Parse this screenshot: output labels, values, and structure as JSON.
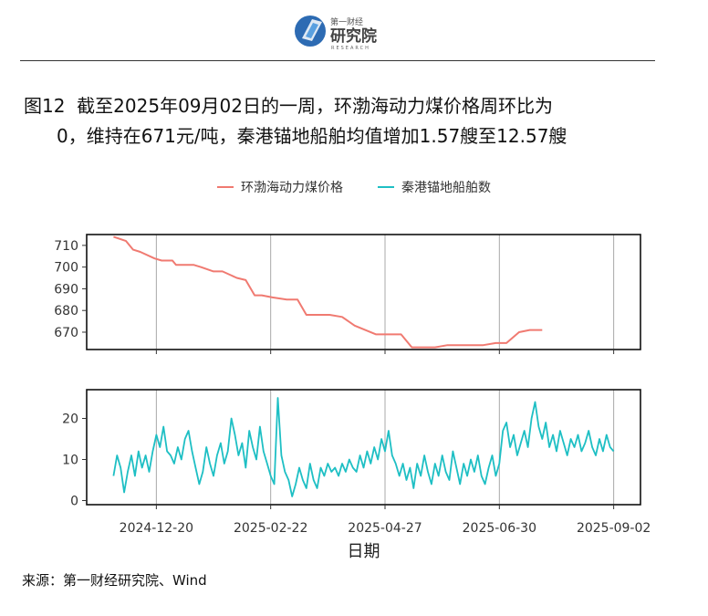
{
  "logo": {
    "brand_cn": "第一财经",
    "name_cn": "研究院",
    "name_en": "RESEARCH"
  },
  "title": {
    "prefix": "图12",
    "line1": "截至2025年09月02日的一周，环渤海动力煤价格周环比为",
    "line2": "0，维持在671元/吨，秦港锚地船舶均值增加1.57艘至12.57艘"
  },
  "legend": [
    "环渤海动力煤价格",
    "秦港锚地船舶数"
  ],
  "source": "来源：第一财经研究院、Wind",
  "colors": {
    "price": "#f07a71",
    "ships": "#1ebfc4",
    "grid": "#a8a8a8",
    "frame": "#111111"
  },
  "chart_data": [
    {
      "type": "line",
      "series": [
        {
          "name": "环渤海动力煤价格",
          "color": "#f07a71"
        }
      ],
      "x_type": "date",
      "xlim": [
        "2024-11-11",
        "2025-09-17"
      ],
      "x_ticks": [
        "2024-12-20",
        "2025-02-22",
        "2025-04-27",
        "2025-06-30",
        "2025-09-02"
      ],
      "ylim": [
        662,
        715
      ],
      "y_ticks": [
        670,
        680,
        690,
        700,
        710
      ],
      "points": [
        [
          "2024-11-26",
          714
        ],
        [
          "2024-12-03",
          712
        ],
        [
          "2024-12-07",
          708
        ],
        [
          "2024-12-11",
          707
        ],
        [
          "2024-12-19",
          704
        ],
        [
          "2024-12-23",
          703
        ],
        [
          "2024-12-29",
          703
        ],
        [
          "2024-12-31",
          701
        ],
        [
          "2025-01-10",
          701
        ],
        [
          "2025-01-14",
          700
        ],
        [
          "2025-01-21",
          698
        ],
        [
          "2025-01-26",
          698
        ],
        [
          "2025-02-03",
          695
        ],
        [
          "2025-02-08",
          694
        ],
        [
          "2025-02-13",
          687
        ],
        [
          "2025-02-17",
          687
        ],
        [
          "2025-02-23",
          686
        ],
        [
          "2025-03-03",
          685
        ],
        [
          "2025-03-09",
          685
        ],
        [
          "2025-03-14",
          678
        ],
        [
          "2025-03-27",
          678
        ],
        [
          "2025-04-03",
          677
        ],
        [
          "2025-04-10",
          673
        ],
        [
          "2025-04-22",
          669
        ],
        [
          "2025-05-06",
          669
        ],
        [
          "2025-05-12",
          663
        ],
        [
          "2025-05-25",
          663
        ],
        [
          "2025-06-01",
          664
        ],
        [
          "2025-06-21",
          664
        ],
        [
          "2025-06-28",
          665
        ],
        [
          "2025-07-04",
          665
        ],
        [
          "2025-07-11",
          670
        ],
        [
          "2025-07-17",
          671
        ],
        [
          "2025-07-24",
          671
        ]
      ]
    },
    {
      "type": "line",
      "series": [
        {
          "name": "秦港锚地船舶数",
          "color": "#1ebfc4"
        }
      ],
      "x_type": "date",
      "xlim": [
        "2024-11-11",
        "2025-09-17"
      ],
      "x_ticks": [
        "2024-12-20",
        "2025-02-22",
        "2025-04-27",
        "2025-06-30",
        "2025-09-02"
      ],
      "xlabel": "日期",
      "ylim": [
        -1,
        27
      ],
      "y_ticks": [
        0,
        10,
        20
      ],
      "points": [
        [
          "2024-11-26",
          6
        ],
        [
          "2024-11-28",
          11
        ],
        [
          "2024-11-30",
          8
        ],
        [
          "2024-12-02",
          2
        ],
        [
          "2024-12-04",
          7
        ],
        [
          "2024-12-06",
          11
        ],
        [
          "2024-12-08",
          6
        ],
        [
          "2024-12-10",
          12
        ],
        [
          "2024-12-12",
          8
        ],
        [
          "2024-12-14",
          11
        ],
        [
          "2024-12-16",
          7
        ],
        [
          "2024-12-18",
          12
        ],
        [
          "2024-12-20",
          16
        ],
        [
          "2024-12-22",
          13
        ],
        [
          "2024-12-24",
          18
        ],
        [
          "2024-12-26",
          12
        ],
        [
          "2024-12-28",
          11
        ],
        [
          "2024-12-30",
          9
        ],
        [
          "2025-01-01",
          13
        ],
        [
          "2025-01-03",
          10
        ],
        [
          "2025-01-05",
          15
        ],
        [
          "2025-01-07",
          17
        ],
        [
          "2025-01-09",
          12
        ],
        [
          "2025-01-11",
          8
        ],
        [
          "2025-01-13",
          4
        ],
        [
          "2025-01-15",
          7
        ],
        [
          "2025-01-17",
          13
        ],
        [
          "2025-01-19",
          9
        ],
        [
          "2025-01-21",
          6
        ],
        [
          "2025-01-23",
          11
        ],
        [
          "2025-01-25",
          14
        ],
        [
          "2025-01-27",
          9
        ],
        [
          "2025-01-29",
          12
        ],
        [
          "2025-01-31",
          20
        ],
        [
          "2025-02-02",
          16
        ],
        [
          "2025-02-04",
          11
        ],
        [
          "2025-02-06",
          14
        ],
        [
          "2025-02-08",
          8
        ],
        [
          "2025-02-10",
          17
        ],
        [
          "2025-02-12",
          13
        ],
        [
          "2025-02-14",
          10
        ],
        [
          "2025-02-16",
          18
        ],
        [
          "2025-02-18",
          12
        ],
        [
          "2025-02-20",
          9
        ],
        [
          "2025-02-22",
          6
        ],
        [
          "2025-02-24",
          4
        ],
        [
          "2025-02-26",
          25
        ],
        [
          "2025-02-28",
          11
        ],
        [
          "2025-03-02",
          7
        ],
        [
          "2025-03-04",
          5
        ],
        [
          "2025-03-06",
          1
        ],
        [
          "2025-03-08",
          4
        ],
        [
          "2025-03-10",
          8
        ],
        [
          "2025-03-12",
          5
        ],
        [
          "2025-03-14",
          3
        ],
        [
          "2025-03-16",
          9
        ],
        [
          "2025-03-18",
          5
        ],
        [
          "2025-03-20",
          3
        ],
        [
          "2025-03-22",
          8
        ],
        [
          "2025-03-24",
          6
        ],
        [
          "2025-03-26",
          9
        ],
        [
          "2025-03-28",
          7
        ],
        [
          "2025-03-30",
          8
        ],
        [
          "2025-04-01",
          6
        ],
        [
          "2025-04-03",
          9
        ],
        [
          "2025-04-05",
          7
        ],
        [
          "2025-04-07",
          10
        ],
        [
          "2025-04-09",
          8
        ],
        [
          "2025-04-11",
          7
        ],
        [
          "2025-04-13",
          11
        ],
        [
          "2025-04-15",
          8
        ],
        [
          "2025-04-17",
          12
        ],
        [
          "2025-04-19",
          9
        ],
        [
          "2025-04-21",
          13
        ],
        [
          "2025-04-23",
          10
        ],
        [
          "2025-04-25",
          15
        ],
        [
          "2025-04-27",
          12
        ],
        [
          "2025-04-29",
          17
        ],
        [
          "2025-05-01",
          11
        ],
        [
          "2025-05-03",
          9
        ],
        [
          "2025-05-05",
          6
        ],
        [
          "2025-05-07",
          9
        ],
        [
          "2025-05-09",
          5
        ],
        [
          "2025-05-11",
          8
        ],
        [
          "2025-05-13",
          3
        ],
        [
          "2025-05-15",
          9
        ],
        [
          "2025-05-17",
          6
        ],
        [
          "2025-05-19",
          11
        ],
        [
          "2025-05-21",
          7
        ],
        [
          "2025-05-23",
          4
        ],
        [
          "2025-05-25",
          9
        ],
        [
          "2025-05-27",
          6
        ],
        [
          "2025-05-29",
          11
        ],
        [
          "2025-05-31",
          7
        ],
        [
          "2025-06-02",
          5
        ],
        [
          "2025-06-04",
          12
        ],
        [
          "2025-06-06",
          8
        ],
        [
          "2025-06-08",
          4
        ],
        [
          "2025-06-10",
          9
        ],
        [
          "2025-06-12",
          6
        ],
        [
          "2025-06-14",
          10
        ],
        [
          "2025-06-16",
          7
        ],
        [
          "2025-06-18",
          11
        ],
        [
          "2025-06-20",
          6
        ],
        [
          "2025-06-22",
          4
        ],
        [
          "2025-06-24",
          8
        ],
        [
          "2025-06-26",
          11
        ],
        [
          "2025-06-28",
          6
        ],
        [
          "2025-06-30",
          9
        ],
        [
          "2025-07-02",
          17
        ],
        [
          "2025-07-04",
          19
        ],
        [
          "2025-07-06",
          13
        ],
        [
          "2025-07-08",
          16
        ],
        [
          "2025-07-10",
          11
        ],
        [
          "2025-07-12",
          14
        ],
        [
          "2025-07-14",
          17
        ],
        [
          "2025-07-16",
          13
        ],
        [
          "2025-07-18",
          20
        ],
        [
          "2025-07-20",
          24
        ],
        [
          "2025-07-22",
          18
        ],
        [
          "2025-07-24",
          15
        ],
        [
          "2025-07-26",
          19
        ],
        [
          "2025-07-28",
          13
        ],
        [
          "2025-07-30",
          16
        ],
        [
          "2025-08-01",
          12
        ],
        [
          "2025-08-03",
          17
        ],
        [
          "2025-08-05",
          14
        ],
        [
          "2025-08-07",
          11
        ],
        [
          "2025-08-09",
          15
        ],
        [
          "2025-08-11",
          13
        ],
        [
          "2025-08-13",
          16
        ],
        [
          "2025-08-15",
          12
        ],
        [
          "2025-08-17",
          14
        ],
        [
          "2025-08-19",
          17
        ],
        [
          "2025-08-21",
          13
        ],
        [
          "2025-08-23",
          11
        ],
        [
          "2025-08-25",
          15
        ],
        [
          "2025-08-27",
          12
        ],
        [
          "2025-08-29",
          16
        ],
        [
          "2025-08-31",
          13
        ],
        [
          "2025-09-02",
          12
        ]
      ]
    }
  ]
}
